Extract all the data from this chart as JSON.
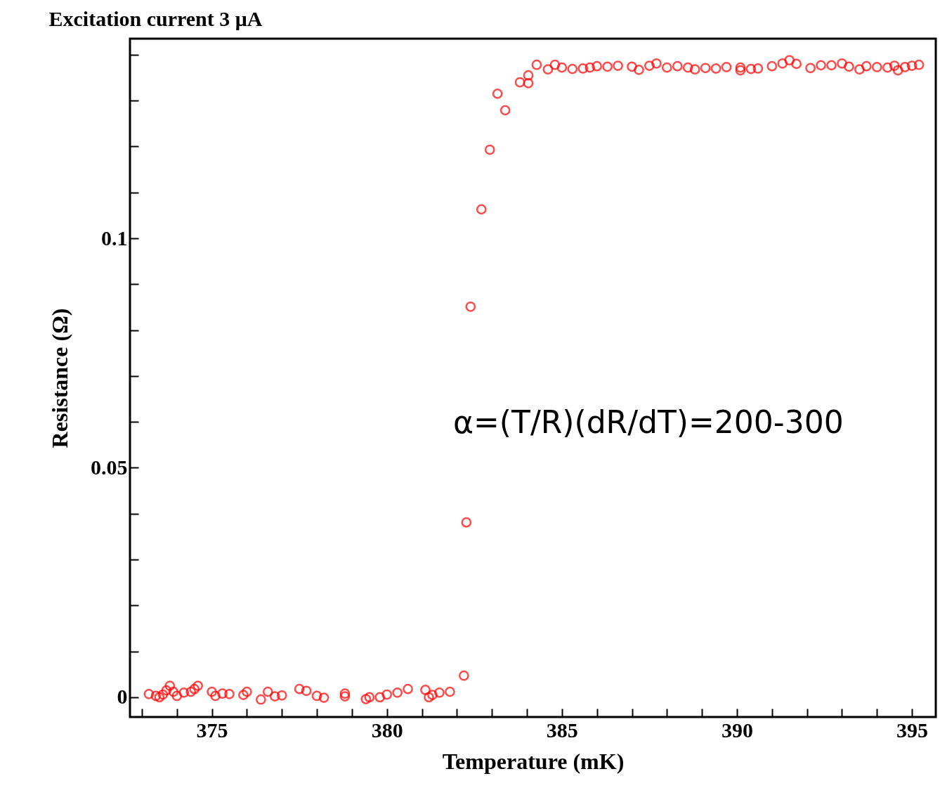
{
  "chart_data": {
    "type": "scatter",
    "title": "Excitation current 3 μA",
    "xlabel": "Temperature (mK)",
    "ylabel": "Resistance (Ω)",
    "annotations": [
      "α=(T/R)(dR/dT)=200-300"
    ],
    "marker": "circle",
    "grid": false,
    "legend": false,
    "xlim": [
      372.66,
      395.68
    ],
    "ylim": [
      -0.0043,
      0.1435
    ],
    "xticks": [
      {
        "value": 373,
        "label": null
      },
      {
        "value": 374,
        "label": null
      },
      375,
      {
        "value": 376,
        "label": null
      },
      {
        "value": 377,
        "label": null
      },
      {
        "value": 378,
        "label": null
      },
      {
        "value": 379,
        "label": null
      },
      380,
      {
        "value": 381,
        "label": null
      },
      {
        "value": 382,
        "label": null
      },
      {
        "value": 383,
        "label": null
      },
      {
        "value": 384,
        "label": null
      },
      385,
      {
        "value": 386,
        "label": null
      },
      {
        "value": 387,
        "label": null
      },
      {
        "value": 388,
        "label": null
      },
      {
        "value": 389,
        "label": null
      },
      390,
      {
        "value": 391,
        "label": null
      },
      {
        "value": 392,
        "label": null
      },
      {
        "value": 393,
        "label": null
      },
      {
        "value": 394,
        "label": null
      },
      395
    ],
    "yticks": [
      0,
      {
        "value": 0.01,
        "label": null
      },
      {
        "value": 0.02,
        "label": null
      },
      {
        "value": 0.03,
        "label": null
      },
      {
        "value": 0.04,
        "label": null
      },
      0.05,
      {
        "value": 0.06,
        "label": null
      },
      {
        "value": 0.07,
        "label": null
      },
      {
        "value": 0.08,
        "label": null
      },
      {
        "value": 0.09,
        "label": null
      },
      0.1,
      {
        "value": 0.11,
        "label": null
      },
      {
        "value": 0.12,
        "label": null
      },
      {
        "value": 0.13,
        "label": null
      },
      {
        "value": 0.14,
        "label": null
      }
    ],
    "series": [
      {
        "color": "#ff0000",
        "x": [
          373.2,
          373.4,
          373.5,
          373.6,
          373.7,
          373.8,
          373.9,
          374.0,
          374.2,
          374.4,
          374.5,
          374.6,
          375.0,
          375.1,
          375.3,
          375.5,
          375.9,
          376.0,
          376.4,
          376.6,
          376.8,
          377.0,
          377.5,
          377.7,
          378.0,
          378.2,
          378.8,
          378.8,
          379.4,
          379.5,
          379.8,
          380.0,
          380.3,
          380.6,
          381.1,
          381.2,
          381.3,
          381.5,
          381.8,
          382.2,
          382.27,
          382.39,
          382.7,
          382.94,
          383.16,
          383.38,
          383.8,
          384.04,
          384.04,
          384.28,
          384.6,
          384.8,
          385.0,
          385.3,
          385.6,
          385.8,
          386.0,
          386.3,
          386.6,
          387.0,
          387.2,
          387.5,
          387.7,
          388.0,
          388.3,
          388.6,
          388.8,
          389.1,
          389.4,
          389.7,
          390.1,
          390.1,
          390.4,
          390.6,
          391.0,
          391.3,
          391.5,
          391.7,
          392.1,
          392.4,
          392.7,
          393.0,
          393.2,
          393.5,
          393.7,
          394.0,
          394.3,
          394.5,
          394.6,
          394.8,
          395.0,
          395.2
        ],
        "values": [
          0.0007,
          0.0003,
          0.0,
          0.0006,
          0.0015,
          0.0025,
          0.0012,
          0.0003,
          0.001,
          0.0012,
          0.0018,
          0.0025,
          0.0012,
          0.0003,
          0.0008,
          0.0007,
          0.0005,
          0.0012,
          -0.0005,
          0.0012,
          0.0002,
          0.0004,
          0.0018,
          0.0014,
          0.0003,
          -0.0001,
          0.0002,
          0.0008,
          -0.0004,
          0.0,
          0.0,
          0.0006,
          0.001,
          0.0018,
          0.0016,
          0.0,
          0.0005,
          0.001,
          0.0012,
          0.0047,
          0.0381,
          0.0851,
          0.1063,
          0.1193,
          0.1315,
          0.1279,
          0.134,
          0.1338,
          0.1355,
          0.1378,
          0.1368,
          0.1378,
          0.1372,
          0.1369,
          0.137,
          0.1372,
          0.1375,
          0.1374,
          0.1376,
          0.1374,
          0.1367,
          0.1376,
          0.1381,
          0.1372,
          0.1375,
          0.1372,
          0.1368,
          0.1371,
          0.137,
          0.1373,
          0.1366,
          0.1372,
          0.1369,
          0.137,
          0.1375,
          0.1381,
          0.1388,
          0.138,
          0.1371,
          0.1377,
          0.1377,
          0.1381,
          0.1374,
          0.1368,
          0.1375,
          0.1373,
          0.1372,
          0.1376,
          0.1366,
          0.1373,
          0.1376,
          0.1378
        ]
      }
    ]
  }
}
